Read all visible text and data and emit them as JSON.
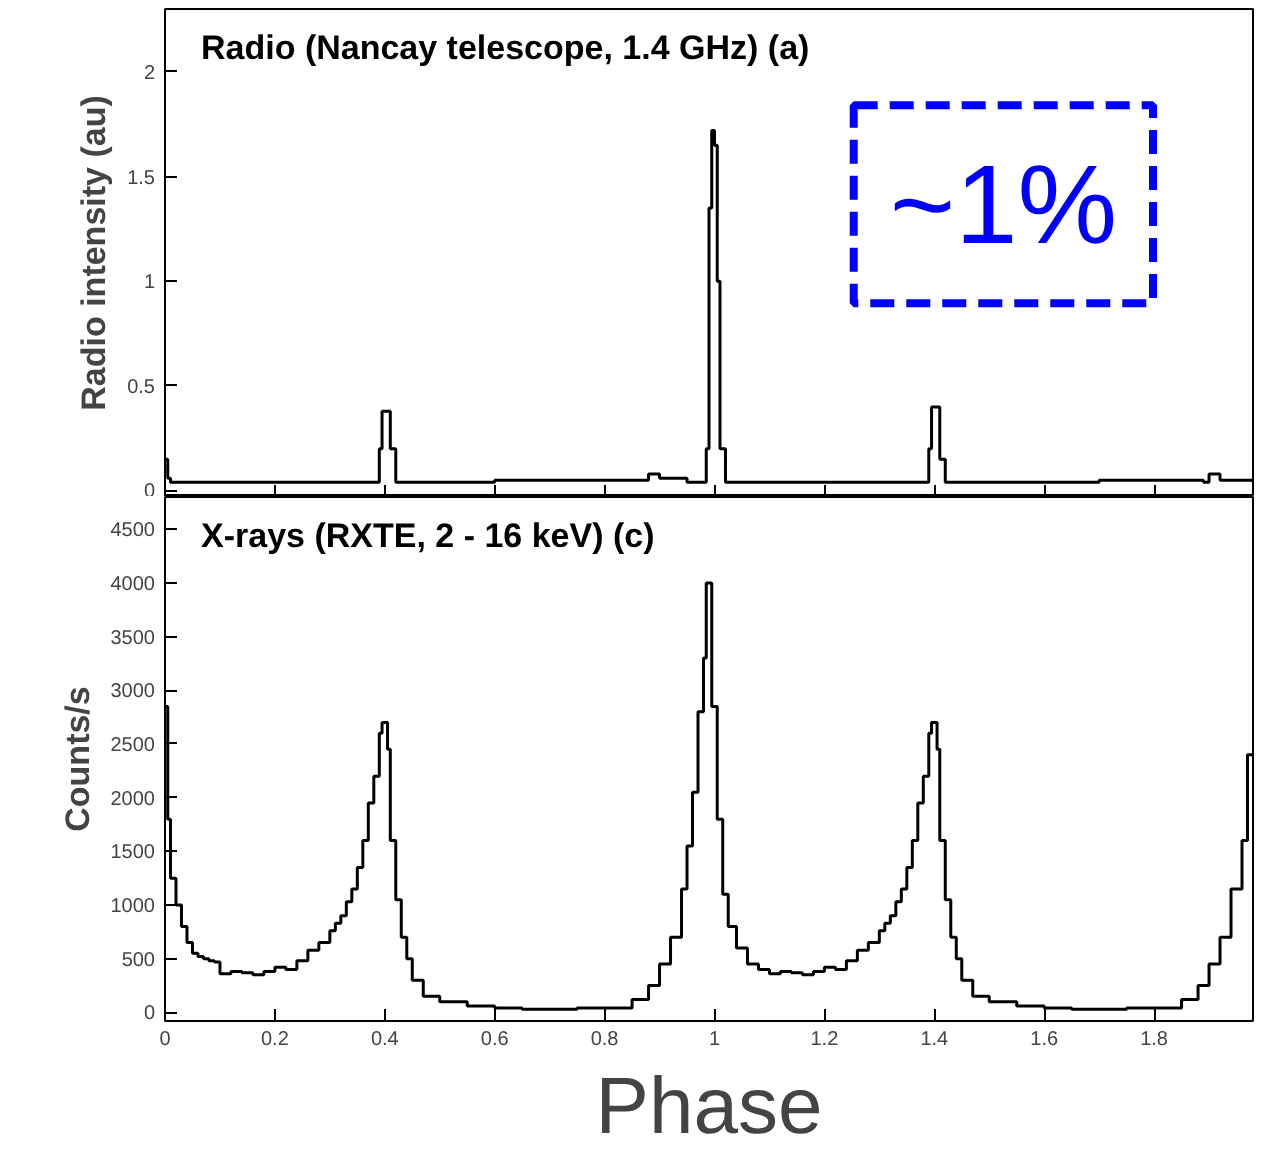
{
  "chart_data": [
    {
      "type": "step",
      "title": "Radio (Nancay telescope, 1.4 GHz) (a)",
      "ylabel": "Radio intensity (au)",
      "annotations": [
        "~1%"
      ],
      "xlim": [
        0,
        1.98
      ],
      "ylim": [
        -0.03,
        2.3
      ],
      "xticks": [
        0,
        0.2,
        0.4,
        0.6,
        0.8,
        1,
        1.2,
        1.4,
        1.6,
        1.8
      ],
      "yticks": [
        0,
        0.5,
        1,
        1.5,
        2
      ],
      "tick_labels": "y",
      "grid": false,
      "series": [
        {
          "color": "#000000",
          "x": [
            0,
            0.005,
            0.01,
            0.03,
            0.1,
            0.2,
            0.3,
            0.385,
            0.39,
            0.395,
            0.405,
            0.41,
            0.42,
            0.5,
            0.6,
            0.7,
            0.8,
            0.87,
            0.88,
            0.9,
            0.95,
            0.98,
            0.985,
            0.99,
            0.995,
            1.0,
            1.005,
            1.01,
            1.02,
            1.1,
            1.2,
            1.3,
            1.385,
            1.39,
            1.395,
            1.405,
            1.41,
            1.42,
            1.5,
            1.6,
            1.7,
            1.8,
            1.89,
            1.9,
            1.92,
            1.98
          ],
          "values": [
            0.15,
            0.06,
            0.04,
            0.04,
            0.04,
            0.04,
            0.04,
            0.04,
            0.2,
            0.38,
            0.38,
            0.2,
            0.04,
            0.04,
            0.05,
            0.05,
            0.05,
            0.05,
            0.08,
            0.06,
            0.04,
            0.04,
            0.2,
            1.35,
            1.72,
            1.65,
            1.0,
            0.2,
            0.04,
            0.04,
            0.04,
            0.04,
            0.04,
            0.2,
            0.4,
            0.4,
            0.15,
            0.04,
            0.04,
            0.04,
            0.05,
            0.05,
            0.04,
            0.08,
            0.05,
            0.04
          ]
        }
      ]
    },
    {
      "type": "step",
      "title": "X-rays (RXTE, 2 - 16 keV) (c)",
      "xlabel": "Phase",
      "ylabel": "Counts/s",
      "xlim": [
        0,
        1.98
      ],
      "ylim": [
        -80,
        4800
      ],
      "xticks": [
        0,
        0.2,
        0.4,
        0.6,
        0.8,
        1,
        1.2,
        1.4,
        1.6,
        1.8
      ],
      "yticks": [
        0,
        500,
        1000,
        1500,
        2000,
        2500,
        3000,
        3500,
        4000,
        4500
      ],
      "grid": false,
      "series": [
        {
          "color": "#000000",
          "x": [
            0,
            0.005,
            0.01,
            0.02,
            0.03,
            0.04,
            0.05,
            0.06,
            0.07,
            0.08,
            0.09,
            0.1,
            0.12,
            0.14,
            0.16,
            0.18,
            0.2,
            0.22,
            0.24,
            0.26,
            0.28,
            0.3,
            0.31,
            0.32,
            0.33,
            0.34,
            0.35,
            0.36,
            0.37,
            0.38,
            0.39,
            0.395,
            0.405,
            0.41,
            0.42,
            0.43,
            0.44,
            0.45,
            0.47,
            0.5,
            0.55,
            0.6,
            0.65,
            0.7,
            0.75,
            0.8,
            0.85,
            0.88,
            0.9,
            0.92,
            0.94,
            0.95,
            0.96,
            0.97,
            0.98,
            0.985,
            0.995,
            1.005,
            1.015,
            1.025,
            1.04,
            1.06,
            1.08,
            1.1,
            1.12,
            1.14,
            1.16,
            1.18,
            1.2,
            1.22,
            1.24,
            1.26,
            1.28,
            1.3,
            1.31,
            1.32,
            1.33,
            1.34,
            1.35,
            1.36,
            1.37,
            1.38,
            1.39,
            1.395,
            1.405,
            1.41,
            1.42,
            1.43,
            1.44,
            1.45,
            1.47,
            1.5,
            1.55,
            1.6,
            1.65,
            1.7,
            1.75,
            1.8,
            1.85,
            1.88,
            1.9,
            1.92,
            1.94,
            1.96,
            1.97,
            1.98
          ],
          "values": [
            2850,
            1800,
            1250,
            1000,
            800,
            650,
            550,
            520,
            500,
            480,
            470,
            360,
            380,
            370,
            350,
            380,
            420,
            400,
            480,
            580,
            650,
            760,
            830,
            900,
            1030,
            1150,
            1350,
            1600,
            1950,
            2200,
            2600,
            2700,
            2450,
            1600,
            1050,
            700,
            500,
            300,
            150,
            100,
            60,
            40,
            30,
            30,
            40,
            40,
            120,
            250,
            450,
            700,
            1150,
            1550,
            2050,
            2800,
            3300,
            4000,
            2850,
            1800,
            1100,
            800,
            600,
            450,
            400,
            360,
            380,
            370,
            350,
            380,
            420,
            400,
            480,
            580,
            650,
            760,
            830,
            900,
            1030,
            1150,
            1350,
            1600,
            1950,
            2200,
            2600,
            2700,
            2450,
            1600,
            1050,
            700,
            500,
            300,
            150,
            100,
            60,
            40,
            30,
            30,
            40,
            40,
            120,
            250,
            450,
            700,
            1150,
            1600,
            2400,
            2400
          ]
        }
      ]
    }
  ]
}
